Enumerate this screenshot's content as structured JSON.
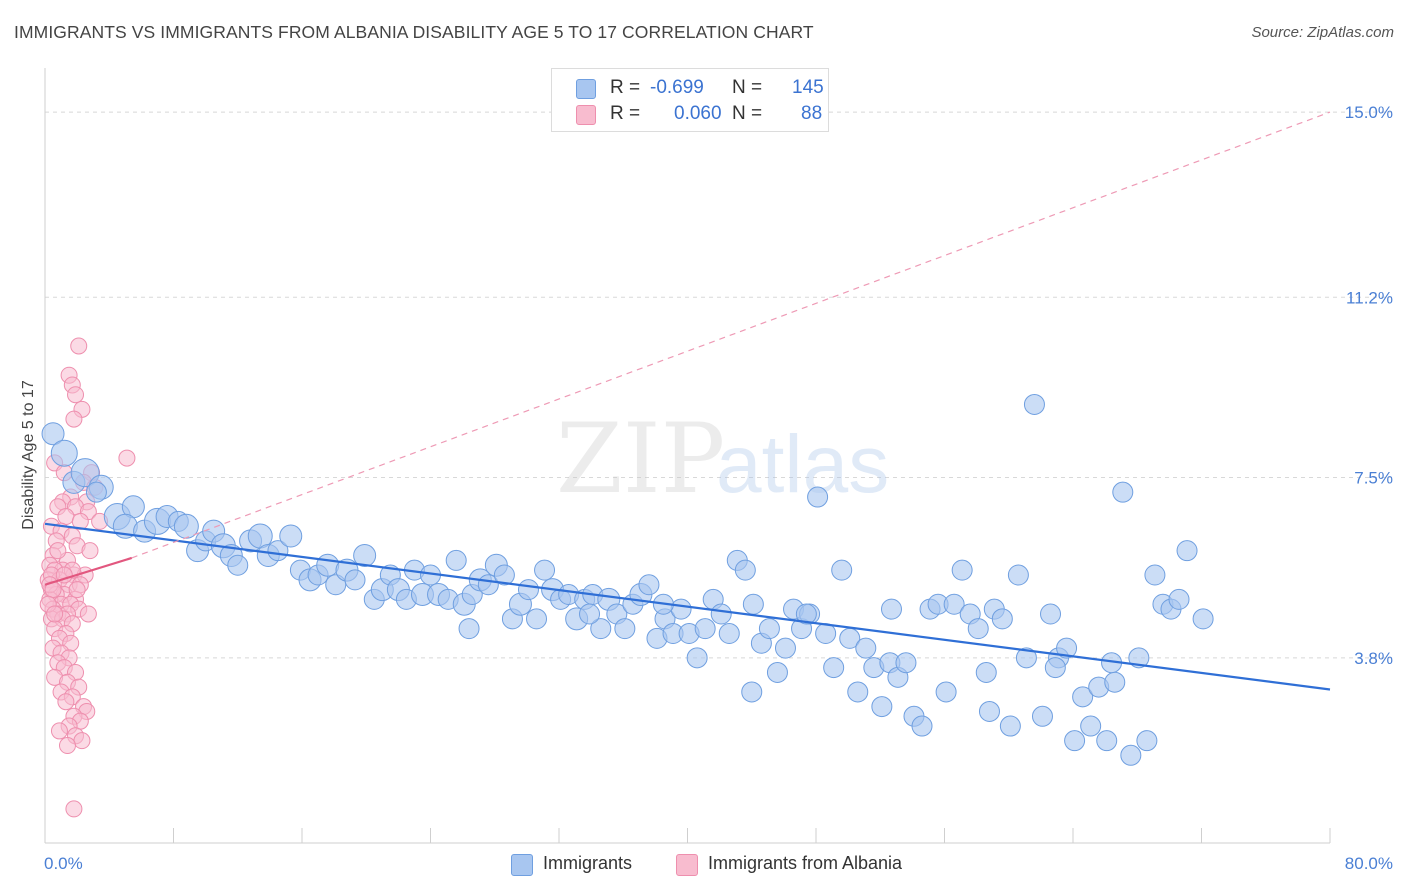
{
  "header": {
    "title": "IMMIGRANTS VS IMMIGRANTS FROM ALBANIA DISABILITY AGE 5 TO 17 CORRELATION CHART",
    "source": "Source: ZipAtlas.com"
  },
  "watermark": {
    "zip": "ZIP",
    "atlas": "atlas"
  },
  "legend": {
    "rows": [
      {
        "r_label": "R =",
        "r_value": "-0.699",
        "n_label": "N =",
        "n_value": "145",
        "color": "#a8c6f0",
        "border": "#6f9fe0"
      },
      {
        "r_label": "R =",
        "r_value": "0.060",
        "n_label": "N =",
        "n_value": "88",
        "color": "#f8bccf",
        "border": "#ee8fae"
      }
    ]
  },
  "bottom_legend": {
    "items": [
      {
        "label": "Immigrants",
        "color": "#a8c6f0",
        "border": "#6f9fe0"
      },
      {
        "label": "Immigrants from Albania",
        "color": "#f8bccf",
        "border": "#ee8fae"
      }
    ]
  },
  "chart_data": {
    "type": "scatter",
    "title": "IMMIGRANTS VS IMMIGRANTS FROM ALBANIA DISABILITY AGE 5 TO 17 CORRELATION CHART",
    "xlabel": "",
    "ylabel": "Disability Age 5 to 17",
    "xlim": [
      0,
      80
    ],
    "ylim": [
      0,
      15.7
    ],
    "x_tick_labels": [
      "0.0%",
      "80.0%"
    ],
    "y_ticks": [
      3.8,
      7.5,
      11.2,
      15.0
    ],
    "y_tick_labels": [
      "3.8%",
      "7.5%",
      "11.2%",
      "15.0%"
    ],
    "grid": true,
    "series": [
      {
        "name": "Immigrants",
        "color": "#6f9fe0",
        "fill": "#a8c6f0",
        "trend": {
          "x": [
            0,
            80
          ],
          "y": [
            6.55,
            3.15
          ],
          "color": "#2f6fd6"
        },
        "points": [
          [
            0.5,
            8.4,
            11
          ],
          [
            1.2,
            8.0,
            13
          ],
          [
            1.8,
            7.4,
            11
          ],
          [
            2.5,
            7.6,
            14
          ],
          [
            3.5,
            7.3,
            12
          ],
          [
            3.2,
            7.2,
            10
          ],
          [
            4.5,
            6.7,
            13
          ],
          [
            5.5,
            6.9,
            11
          ],
          [
            5.0,
            6.5,
            12
          ],
          [
            6.2,
            6.4,
            11
          ],
          [
            7.0,
            6.6,
            13
          ],
          [
            7.6,
            6.7,
            11
          ],
          [
            8.3,
            6.6,
            10
          ],
          [
            8.8,
            6.5,
            12
          ],
          [
            9.5,
            6.0,
            11
          ],
          [
            10.0,
            6.2,
            10
          ],
          [
            10.5,
            6.4,
            11
          ],
          [
            11.1,
            6.1,
            12
          ],
          [
            11.6,
            5.9,
            11
          ],
          [
            12.0,
            5.7,
            10
          ],
          [
            12.8,
            6.2,
            11
          ],
          [
            13.4,
            6.3,
            12
          ],
          [
            13.9,
            5.9,
            11
          ],
          [
            14.5,
            6.0,
            10
          ],
          [
            15.3,
            6.3,
            11
          ],
          [
            15.9,
            5.6,
            10
          ],
          [
            16.5,
            5.4,
            11
          ],
          [
            17.0,
            5.5,
            10
          ],
          [
            17.6,
            5.7,
            11
          ],
          [
            18.1,
            5.3,
            10
          ],
          [
            18.8,
            5.6,
            11
          ],
          [
            19.3,
            5.4,
            10
          ],
          [
            19.9,
            5.9,
            11
          ],
          [
            20.5,
            5.0,
            10
          ],
          [
            21.0,
            5.2,
            11
          ],
          [
            21.5,
            5.5,
            10
          ],
          [
            22.0,
            5.2,
            11
          ],
          [
            22.5,
            5.0,
            10
          ],
          [
            23.0,
            5.6,
            10
          ],
          [
            23.5,
            5.1,
            11
          ],
          [
            24.0,
            5.5,
            10
          ],
          [
            24.5,
            5.1,
            11
          ],
          [
            25.1,
            5.0,
            10
          ],
          [
            25.6,
            5.8,
            10
          ],
          [
            26.1,
            4.9,
            11
          ],
          [
            26.6,
            5.1,
            10
          ],
          [
            27.1,
            5.4,
            11
          ],
          [
            27.6,
            5.3,
            10
          ],
          [
            28.1,
            5.7,
            11
          ],
          [
            28.6,
            5.5,
            10
          ],
          [
            29.1,
            4.6,
            10
          ],
          [
            29.6,
            4.9,
            11
          ],
          [
            30.1,
            5.2,
            10
          ],
          [
            30.6,
            4.6,
            10
          ],
          [
            31.1,
            5.6,
            10
          ],
          [
            31.6,
            5.2,
            11
          ],
          [
            32.1,
            5.0,
            10
          ],
          [
            32.6,
            5.1,
            10
          ],
          [
            33.1,
            4.6,
            11
          ],
          [
            33.6,
            5.0,
            10
          ],
          [
            34.1,
            5.1,
            10
          ],
          [
            34.6,
            4.4,
            10
          ],
          [
            35.1,
            5.0,
            11
          ],
          [
            35.6,
            4.7,
            10
          ],
          [
            36.1,
            4.4,
            10
          ],
          [
            36.6,
            4.9,
            10
          ],
          [
            37.1,
            5.1,
            11
          ],
          [
            37.6,
            5.3,
            10
          ],
          [
            38.1,
            4.2,
            10
          ],
          [
            38.6,
            4.6,
            10
          ],
          [
            39.1,
            4.3,
            10
          ],
          [
            39.6,
            4.8,
            10
          ],
          [
            40.1,
            4.3,
            10
          ],
          [
            40.6,
            3.8,
            10
          ],
          [
            41.1,
            4.4,
            10
          ],
          [
            41.6,
            5.0,
            10
          ],
          [
            42.1,
            4.7,
            10
          ],
          [
            42.6,
            4.3,
            10
          ],
          [
            43.1,
            5.8,
            10
          ],
          [
            43.6,
            5.6,
            10
          ],
          [
            44.1,
            4.9,
            10
          ],
          [
            44.6,
            4.1,
            10
          ],
          [
            45.1,
            4.4,
            10
          ],
          [
            45.6,
            3.5,
            10
          ],
          [
            46.1,
            4.0,
            10
          ],
          [
            46.6,
            4.8,
            10
          ],
          [
            47.1,
            4.4,
            10
          ],
          [
            47.6,
            4.7,
            10
          ],
          [
            48.1,
            7.1,
            10
          ],
          [
            48.6,
            4.3,
            10
          ],
          [
            49.1,
            3.6,
            10
          ],
          [
            49.6,
            5.6,
            10
          ],
          [
            50.1,
            4.2,
            10
          ],
          [
            50.6,
            3.1,
            10
          ],
          [
            51.1,
            4.0,
            10
          ],
          [
            51.6,
            3.6,
            10
          ],
          [
            52.1,
            2.8,
            10
          ],
          [
            52.6,
            3.7,
            10
          ],
          [
            53.1,
            3.4,
            10
          ],
          [
            53.6,
            3.7,
            10
          ],
          [
            54.1,
            2.6,
            10
          ],
          [
            54.6,
            2.4,
            10
          ],
          [
            55.1,
            4.8,
            10
          ],
          [
            55.6,
            4.9,
            10
          ],
          [
            56.1,
            3.1,
            10
          ],
          [
            56.6,
            4.9,
            10
          ],
          [
            57.1,
            5.6,
            10
          ],
          [
            57.6,
            4.7,
            10
          ],
          [
            58.1,
            4.4,
            10
          ],
          [
            58.6,
            3.5,
            10
          ],
          [
            59.1,
            4.8,
            10
          ],
          [
            59.6,
            4.6,
            10
          ],
          [
            60.1,
            2.4,
            10
          ],
          [
            60.6,
            5.5,
            10
          ],
          [
            61.1,
            3.8,
            10
          ],
          [
            61.6,
            9.0,
            10
          ],
          [
            62.1,
            2.6,
            10
          ],
          [
            62.6,
            4.7,
            10
          ],
          [
            63.1,
            3.8,
            10
          ],
          [
            63.6,
            4.0,
            10
          ],
          [
            64.1,
            2.1,
            10
          ],
          [
            64.6,
            3.0,
            10
          ],
          [
            65.1,
            2.4,
            10
          ],
          [
            65.6,
            3.2,
            10
          ],
          [
            66.1,
            2.1,
            10
          ],
          [
            66.6,
            3.3,
            10
          ],
          [
            67.1,
            7.2,
            10
          ],
          [
            67.6,
            1.8,
            10
          ],
          [
            68.1,
            3.8,
            10
          ],
          [
            68.6,
            2.1,
            10
          ],
          [
            69.1,
            5.5,
            10
          ],
          [
            69.6,
            4.9,
            10
          ],
          [
            70.1,
            4.8,
            10
          ],
          [
            70.6,
            5.0,
            10
          ],
          [
            71.1,
            6.0,
            10
          ],
          [
            72.1,
            4.6,
            10
          ],
          [
            47.4,
            4.7,
            10
          ],
          [
            58.8,
            2.7,
            10
          ],
          [
            52.7,
            4.8,
            10
          ],
          [
            44.0,
            3.1,
            10
          ],
          [
            38.5,
            4.9,
            10
          ],
          [
            33.9,
            4.7,
            10
          ],
          [
            26.4,
            4.4,
            10
          ],
          [
            62.9,
            3.6,
            10
          ],
          [
            66.4,
            3.7,
            10
          ]
        ]
      },
      {
        "name": "Immigrants from Albania",
        "color": "#ee8fae",
        "fill": "#f8bccf",
        "trend": {
          "x": [
            0,
            5.4
          ],
          "y": [
            5.3,
            5.85
          ],
          "color": "#e2577f",
          "dashed_extension_to": [
            80,
            15.0
          ]
        },
        "points": [
          [
            2.1,
            10.2
          ],
          [
            1.5,
            9.6
          ],
          [
            1.7,
            9.4
          ],
          [
            1.9,
            9.2
          ],
          [
            2.3,
            8.9
          ],
          [
            1.8,
            8.7
          ],
          [
            5.1,
            7.9
          ],
          [
            0.6,
            7.8
          ],
          [
            1.2,
            7.6
          ],
          [
            2.9,
            7.6
          ],
          [
            2.4,
            7.4
          ],
          [
            3.1,
            7.3
          ],
          [
            1.6,
            7.1
          ],
          [
            2.6,
            7.0
          ],
          [
            1.1,
            7.0
          ],
          [
            0.8,
            6.9
          ],
          [
            1.9,
            6.9
          ],
          [
            2.7,
            6.8
          ],
          [
            1.3,
            6.7
          ],
          [
            2.2,
            6.6
          ],
          [
            3.4,
            6.6
          ],
          [
            0.4,
            6.5
          ],
          [
            1.0,
            6.4
          ],
          [
            1.7,
            6.3
          ],
          [
            0.7,
            6.2
          ],
          [
            2.0,
            6.1
          ],
          [
            2.8,
            6.0
          ],
          [
            0.5,
            5.9
          ],
          [
            1.4,
            5.8
          ],
          [
            0.3,
            5.7
          ],
          [
            1.1,
            5.6
          ],
          [
            0.6,
            5.6
          ],
          [
            1.8,
            5.5
          ],
          [
            2.5,
            5.5
          ],
          [
            0.2,
            5.4
          ],
          [
            0.9,
            5.4
          ],
          [
            1.5,
            5.3
          ],
          [
            2.2,
            5.3
          ],
          [
            0.4,
            5.2
          ],
          [
            1.2,
            5.1
          ],
          [
            0.7,
            5.1
          ],
          [
            1.9,
            5.0
          ],
          [
            0.3,
            5.0
          ],
          [
            1.0,
            4.9
          ],
          [
            1.6,
            4.9
          ],
          [
            0.5,
            4.8
          ],
          [
            2.1,
            4.8
          ],
          [
            0.8,
            4.7
          ],
          [
            1.4,
            4.7
          ],
          [
            2.7,
            4.7
          ],
          [
            0.4,
            4.6
          ],
          [
            1.1,
            4.6
          ],
          [
            1.7,
            4.5
          ],
          [
            0.6,
            4.4
          ],
          [
            1.3,
            4.3
          ],
          [
            0.9,
            4.2
          ],
          [
            1.6,
            4.1
          ],
          [
            0.5,
            4.0
          ],
          [
            1.0,
            3.9
          ],
          [
            1.5,
            3.8
          ],
          [
            0.8,
            3.7
          ],
          [
            1.2,
            3.6
          ],
          [
            1.9,
            3.5
          ],
          [
            0.6,
            3.4
          ],
          [
            1.4,
            3.3
          ],
          [
            2.1,
            3.2
          ],
          [
            1.0,
            3.1
          ],
          [
            1.7,
            3.0
          ],
          [
            1.3,
            2.9
          ],
          [
            2.4,
            2.8
          ],
          [
            2.6,
            2.7
          ],
          [
            1.8,
            2.6
          ],
          [
            2.2,
            2.5
          ],
          [
            1.5,
            2.4
          ],
          [
            0.9,
            2.3
          ],
          [
            1.9,
            2.2
          ],
          [
            2.3,
            2.1
          ],
          [
            1.4,
            2.0
          ],
          [
            0.4,
            5.5
          ],
          [
            0.3,
            5.3
          ],
          [
            0.5,
            5.2
          ],
          [
            0.2,
            4.9
          ],
          [
            0.6,
            4.7
          ],
          [
            1.7,
            5.6
          ],
          [
            2.0,
            5.2
          ],
          [
            1.2,
            5.5
          ],
          [
            0.8,
            6.0
          ],
          [
            1.8,
            0.7
          ]
        ]
      }
    ]
  }
}
